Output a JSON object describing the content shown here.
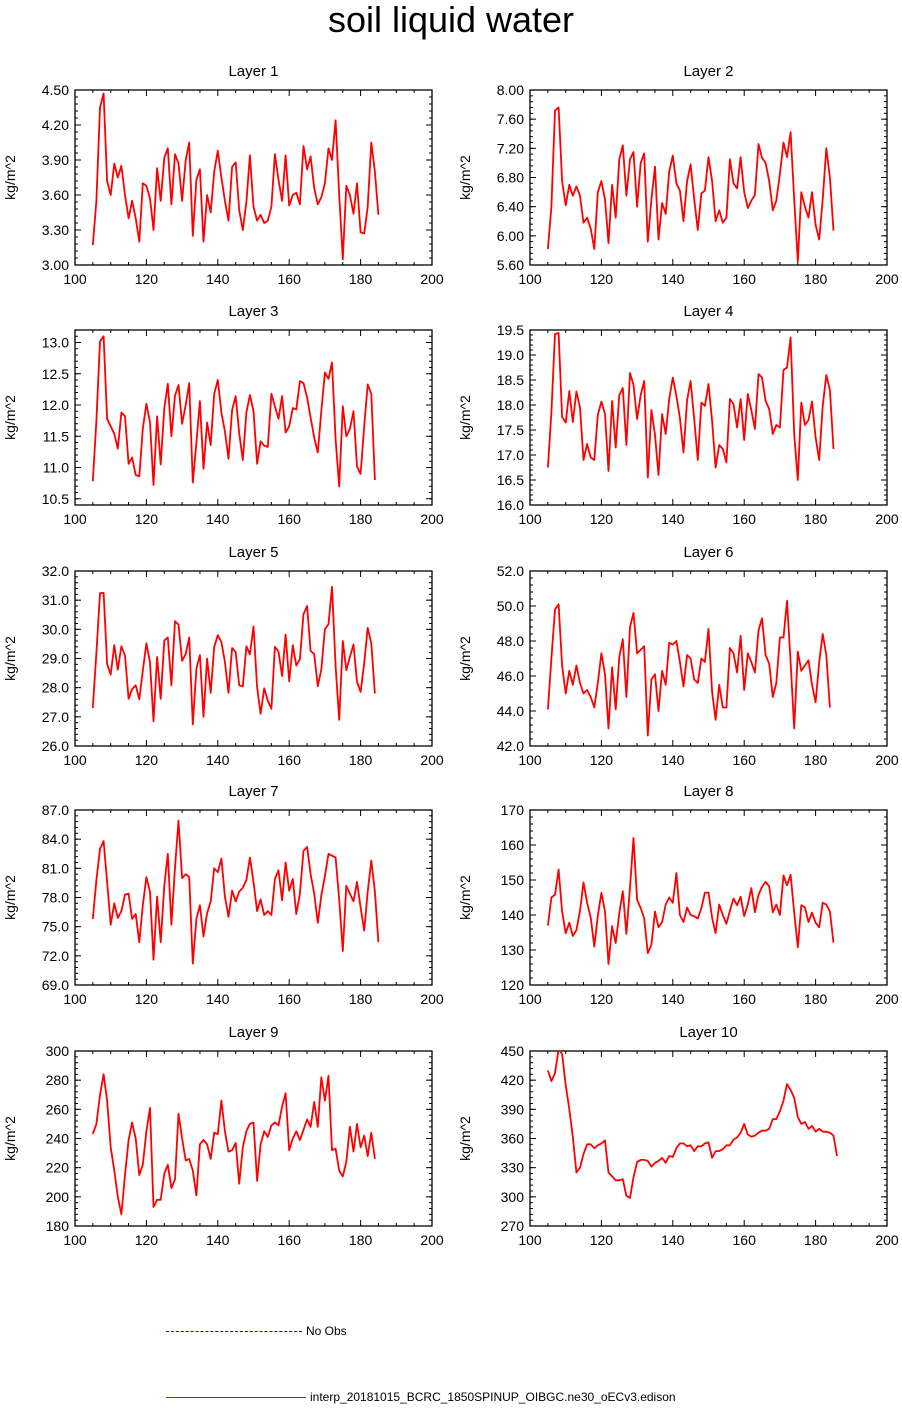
{
  "title": "soil liquid water",
  "legend": {
    "no_obs_label": "No Obs",
    "model_label": "interp_20181015_BCRC_1850SPINUP_OIBGC.ne30_oECv3.edison",
    "no_obs_color": "#0000ff",
    "model_color": "#ff0000"
  },
  "chart_data": [
    {
      "type": "line",
      "title": "Layer 1",
      "ylabel": "kg/m^2",
      "xlim": [
        100,
        200
      ],
      "ylim": [
        3.0,
        4.5
      ],
      "xticks": [
        "100",
        "120",
        "140",
        "160",
        "180",
        "200"
      ],
      "yticks": [
        "3.00",
        "3.30",
        "3.60",
        "3.90",
        "4.20",
        "4.50"
      ],
      "x_start": 105,
      "x_step": 1,
      "values": [
        3.17,
        3.55,
        4.35,
        4.47,
        3.72,
        3.6,
        3.87,
        3.75,
        3.85,
        3.6,
        3.4,
        3.55,
        3.4,
        3.2,
        3.7,
        3.68,
        3.57,
        3.3,
        3.83,
        3.55,
        3.92,
        4.0,
        3.52,
        3.95,
        3.87,
        3.55,
        3.9,
        4.05,
        3.25,
        3.73,
        3.82,
        3.2,
        3.6,
        3.45,
        3.8,
        3.98,
        3.75,
        3.55,
        3.38,
        3.84,
        3.88,
        3.47,
        3.3,
        3.54,
        3.94,
        3.5,
        3.38,
        3.43,
        3.36,
        3.38,
        3.5,
        3.95,
        3.73,
        3.55,
        3.94,
        3.51,
        3.6,
        3.62,
        3.52,
        4.02,
        3.82,
        3.93,
        3.66,
        3.52,
        3.58,
        3.7,
        4.0,
        3.9,
        4.24,
        3.6,
        3.05,
        3.68,
        3.6,
        3.44,
        3.7,
        3.28,
        3.27,
        3.5,
        4.05,
        3.8,
        3.43
      ]
    },
    {
      "type": "line",
      "title": "Layer 2",
      "ylabel": "kg/m^2",
      "xlim": [
        100,
        200
      ],
      "ylim": [
        5.6,
        8.0
      ],
      "xticks": [
        "100",
        "120",
        "140",
        "160",
        "180",
        "200"
      ],
      "yticks": [
        "5.60",
        "6.00",
        "6.40",
        "6.80",
        "7.20",
        "7.60",
        "8.00"
      ],
      "x_start": 105,
      "x_step": 1,
      "values": [
        5.82,
        6.4,
        7.72,
        7.76,
        6.75,
        6.42,
        6.7,
        6.55,
        6.68,
        6.55,
        6.18,
        6.25,
        6.1,
        5.82,
        6.6,
        6.75,
        6.5,
        5.9,
        6.7,
        6.25,
        7.05,
        7.24,
        6.55,
        7.05,
        7.15,
        6.4,
        7.0,
        7.13,
        5.92,
        6.5,
        6.95,
        5.95,
        6.45,
        6.3,
        6.88,
        7.1,
        6.72,
        6.62,
        6.2,
        6.75,
        6.98,
        6.5,
        6.08,
        6.58,
        6.62,
        7.08,
        6.75,
        6.2,
        6.35,
        6.18,
        6.25,
        7.05,
        6.72,
        6.65,
        7.08,
        6.6,
        6.38,
        6.48,
        6.56,
        7.26,
        7.07,
        7.0,
        6.75,
        6.35,
        6.48,
        6.85,
        7.28,
        7.08,
        7.42,
        6.5,
        5.65,
        6.6,
        6.4,
        6.25,
        6.6,
        6.15,
        5.95,
        6.5,
        7.2,
        6.8,
        6.07
      ]
    },
    {
      "type": "line",
      "title": "Layer 3",
      "ylabel": "kg/m^2",
      "xlim": [
        100,
        200
      ],
      "ylim": [
        10.4,
        13.2
      ],
      "xticks": [
        "100",
        "120",
        "140",
        "160",
        "180",
        "200"
      ],
      "yticks": [
        "10.5",
        "11.0",
        "11.5",
        "12.0",
        "12.5",
        "13.0"
      ],
      "x_start": 105,
      "x_step": 1,
      "values": [
        10.78,
        11.75,
        13.02,
        13.1,
        11.78,
        11.66,
        11.54,
        11.3,
        11.88,
        11.82,
        11.06,
        11.16,
        10.88,
        10.86,
        11.62,
        12.02,
        11.72,
        10.72,
        11.82,
        11.05,
        11.95,
        12.34,
        11.5,
        12.15,
        12.32,
        11.7,
        12.0,
        12.35,
        10.76,
        11.4,
        12.06,
        10.98,
        11.72,
        11.36,
        12.18,
        12.4,
        11.88,
        11.58,
        11.14,
        11.92,
        12.14,
        11.55,
        11.12,
        11.88,
        12.16,
        11.9,
        11.06,
        11.42,
        11.35,
        11.33,
        12.18,
        11.98,
        11.78,
        12.14,
        11.56,
        11.66,
        11.95,
        11.93,
        12.38,
        12.35,
        12.12,
        11.8,
        11.48,
        11.24,
        11.9,
        12.52,
        12.42,
        12.68,
        11.45,
        10.7,
        11.98,
        11.5,
        11.62,
        11.9,
        11.02,
        10.9,
        11.66,
        12.33,
        12.18,
        10.8
      ]
    },
    {
      "type": "line",
      "title": "Layer 4",
      "ylabel": "kg/m^2",
      "xlim": [
        100,
        200
      ],
      "ylim": [
        16.0,
        19.5
      ],
      "xticks": [
        "100",
        "120",
        "140",
        "160",
        "180",
        "200"
      ],
      "yticks": [
        "16.0",
        "16.5",
        "17.0",
        "17.5",
        "18.0",
        "18.5",
        "19.0",
        "19.5"
      ],
      "x_start": 105,
      "x_step": 1,
      "values": [
        16.75,
        17.85,
        19.42,
        19.44,
        17.76,
        17.65,
        18.28,
        17.66,
        18.27,
        17.95,
        16.9,
        17.22,
        16.95,
        16.9,
        17.8,
        18.07,
        17.82,
        16.68,
        18.08,
        17.15,
        18.2,
        18.34,
        17.2,
        18.64,
        18.4,
        17.72,
        18.2,
        18.48,
        16.55,
        17.9,
        17.4,
        16.6,
        17.82,
        17.42,
        18.12,
        18.55,
        18.18,
        17.74,
        17.05,
        18.1,
        18.48,
        17.72,
        16.9,
        18.05,
        17.98,
        18.42,
        17.68,
        16.75,
        17.2,
        17.12,
        16.85,
        18.12,
        18.02,
        17.55,
        18.12,
        17.3,
        18.22,
        17.9,
        17.52,
        18.62,
        18.55,
        18.08,
        17.92,
        17.42,
        17.6,
        17.55,
        18.7,
        18.75,
        19.35,
        17.42,
        16.5,
        18.05,
        17.6,
        17.7,
        18.07,
        17.35,
        16.9,
        17.98,
        18.6,
        18.3,
        17.12
      ]
    },
    {
      "type": "line",
      "title": "Layer 5",
      "ylabel": "kg/m^2",
      "xlim": [
        100,
        200
      ],
      "ylim": [
        26.0,
        32.0
      ],
      "xticks": [
        "100",
        "120",
        "140",
        "160",
        "180",
        "200"
      ],
      "yticks": [
        "26.0",
        "27.0",
        "28.0",
        "29.0",
        "30.0",
        "31.0",
        "32.0"
      ],
      "x_start": 105,
      "x_step": 1,
      "values": [
        27.3,
        29.2,
        31.24,
        31.25,
        28.82,
        28.45,
        29.46,
        28.62,
        29.42,
        29.1,
        27.62,
        27.95,
        28.08,
        27.6,
        28.58,
        29.52,
        28.86,
        26.85,
        29.05,
        27.62,
        29.62,
        29.72,
        28.08,
        30.28,
        30.16,
        28.92,
        29.15,
        29.72,
        26.74,
        28.65,
        29.12,
        27.0,
        29.0,
        27.82,
        29.4,
        29.8,
        29.56,
        28.88,
        27.82,
        29.36,
        29.22,
        28.08,
        28.04,
        29.42,
        29.14,
        30.1,
        28.02,
        27.1,
        27.98,
        27.55,
        27.28,
        29.4,
        29.24,
        28.4,
        29.82,
        28.22,
        29.46,
        28.76,
        28.98,
        30.52,
        30.8,
        29.26,
        29.15,
        28.05,
        28.62,
        30.0,
        30.18,
        31.46,
        28.74,
        26.9,
        29.6,
        28.6,
        29.06,
        29.48,
        28.2,
        27.85,
        28.84,
        30.05,
        29.52,
        27.8
      ]
    },
    {
      "type": "line",
      "title": "Layer 6",
      "ylabel": "kg/m^2",
      "xlim": [
        100,
        200
      ],
      "ylim": [
        42.0,
        52.0
      ],
      "xticks": [
        "100",
        "120",
        "140",
        "160",
        "180",
        "200"
      ],
      "yticks": [
        "42.0",
        "44.0",
        "46.0",
        "48.0",
        "50.0",
        "52.0"
      ],
      "x_start": 105,
      "x_step": 1,
      "values": [
        44.1,
        47.0,
        49.8,
        50.1,
        46.6,
        45.0,
        46.3,
        45.5,
        46.6,
        45.6,
        45.0,
        45.2,
        44.8,
        44.2,
        45.6,
        47.3,
        46.1,
        43.0,
        46.5,
        44.1,
        47.1,
        48.1,
        44.8,
        48.8,
        49.6,
        47.3,
        47.5,
        47.7,
        42.6,
        45.8,
        46.1,
        44.0,
        46.3,
        45.5,
        47.9,
        47.8,
        48.0,
        46.8,
        45.4,
        47.2,
        47.0,
        45.8,
        45.6,
        47.0,
        46.8,
        48.7,
        45.1,
        43.5,
        45.5,
        44.2,
        44.2,
        47.6,
        47.3,
        46.2,
        48.3,
        45.2,
        47.3,
        46.8,
        46.2,
        48.6,
        49.3,
        47.2,
        46.7,
        44.8,
        45.6,
        48.2,
        48.2,
        50.3,
        46.8,
        43.0,
        47.4,
        46.3,
        46.6,
        46.9,
        45.5,
        44.5,
        46.8,
        48.4,
        47.2,
        44.2
      ]
    },
    {
      "type": "line",
      "title": "Layer 7",
      "ylabel": "kg/m^2",
      "xlim": [
        100,
        200
      ],
      "ylim": [
        69.0,
        87.0
      ],
      "xticks": [
        "100",
        "120",
        "140",
        "160",
        "180",
        "200"
      ],
      "yticks": [
        "69.0",
        "72.0",
        "75.0",
        "78.0",
        "81.0",
        "84.0",
        "87.0"
      ],
      "x_start": 105,
      "x_step": 1,
      "values": [
        75.8,
        79.8,
        83.0,
        83.8,
        79.6,
        75.2,
        77.4,
        75.9,
        76.6,
        78.3,
        78.4,
        75.8,
        76.3,
        73.4,
        77.2,
        80.1,
        78.6,
        71.6,
        78.1,
        73.4,
        79.2,
        82.5,
        75.2,
        81.1,
        85.9,
        80.0,
        80.4,
        80.1,
        71.2,
        75.8,
        77.2,
        74.0,
        76.4,
        77.6,
        81.0,
        80.6,
        82.0,
        78.1,
        76.0,
        78.7,
        77.6,
        78.6,
        79.0,
        79.8,
        82.1,
        79.6,
        76.6,
        77.8,
        76.2,
        76.6,
        76.2,
        79.9,
        80.8,
        77.7,
        81.6,
        78.7,
        79.9,
        76.3,
        78.4,
        82.8,
        83.2,
        80.4,
        78.4,
        75.4,
        78.2,
        80.2,
        82.5,
        82.3,
        82.1,
        77.8,
        72.5,
        79.2,
        78.4,
        77.6,
        79.6,
        77.0,
        74.6,
        78.6,
        81.8,
        78.6,
        73.4
      ]
    },
    {
      "type": "line",
      "title": "Layer 8",
      "ylabel": "kg/m^2",
      "xlim": [
        100,
        200
      ],
      "ylim": [
        120,
        170
      ],
      "xticks": [
        "100",
        "120",
        "140",
        "160",
        "180",
        "200"
      ],
      "yticks": [
        "120",
        "130",
        "140",
        "150",
        "160",
        "170"
      ],
      "x_start": 105,
      "x_step": 1,
      "values": [
        137.0,
        145.0,
        145.8,
        153.0,
        141.0,
        134.8,
        137.8,
        134.0,
        135.7,
        141.2,
        149.3,
        143.5,
        139.3,
        131.0,
        139.8,
        146.3,
        141.0,
        126.0,
        136.8,
        132.0,
        140.5,
        146.8,
        134.6,
        148.0,
        162.0,
        144.3,
        142.0,
        139.0,
        129.1,
        131.5,
        141.0,
        136.5,
        138.0,
        143.0,
        145.0,
        143.5,
        152.0,
        140.0,
        138.0,
        142.1,
        140.0,
        139.7,
        139.0,
        142.0,
        146.4,
        146.4,
        139.2,
        134.8,
        143.0,
        140.0,
        137.5,
        141.2,
        144.7,
        142.8,
        145.2,
        139.7,
        143.0,
        147.7,
        140.8,
        145.8,
        148.0,
        149.5,
        148.2,
        140.8,
        143.0,
        140.0,
        151.3,
        148.5,
        151.5,
        140.7,
        130.8,
        142.8,
        142.2,
        138.0,
        140.7,
        137.8,
        136.5,
        143.5,
        143.0,
        141.0,
        132.1
      ]
    },
    {
      "type": "line",
      "title": "Layer 9",
      "ylabel": "kg/m^2",
      "xlim": [
        100,
        200
      ],
      "ylim": [
        180,
        300
      ],
      "xticks": [
        "100",
        "120",
        "140",
        "160",
        "180",
        "200"
      ],
      "yticks": [
        "180",
        "200",
        "220",
        "240",
        "260",
        "280",
        "300"
      ],
      "x_start": 105,
      "x_step": 1,
      "values": [
        243,
        250,
        270,
        284,
        266,
        234,
        218,
        200,
        188,
        215,
        239,
        251,
        240,
        215,
        222,
        245,
        261,
        193,
        198,
        198,
        216,
        222,
        206,
        212,
        257,
        240,
        225,
        226,
        218,
        201,
        236,
        239,
        236,
        226,
        244,
        243,
        266,
        245,
        231,
        232,
        237,
        209,
        234,
        245,
        250,
        251,
        211,
        236,
        245,
        241,
        249,
        251,
        249,
        262,
        271,
        232,
        240,
        245,
        239,
        246,
        253,
        248,
        265,
        248,
        282,
        266,
        283,
        232,
        233,
        218,
        214,
        224,
        248,
        231,
        250,
        234,
        242,
        228,
        244,
        226
      ]
    },
    {
      "type": "line",
      "title": "Layer 10",
      "ylabel": "kg/m^2",
      "xlim": [
        100,
        200
      ],
      "ylim": [
        270,
        450
      ],
      "xticks": [
        "100",
        "120",
        "140",
        "160",
        "180",
        "200"
      ],
      "yticks": [
        "270",
        "300",
        "330",
        "360",
        "390",
        "420",
        "450"
      ],
      "x_start": 105,
      "x_step": 1,
      "values": [
        430,
        419,
        427,
        452,
        447,
        415,
        390,
        362,
        325,
        330,
        344,
        354,
        354,
        350,
        353,
        355,
        358,
        325,
        321,
        317,
        317,
        318,
        301,
        299,
        320,
        336,
        338,
        338,
        337,
        331,
        335,
        337,
        340,
        335,
        342,
        341,
        350,
        355,
        355,
        352,
        353,
        347,
        352,
        352,
        355,
        356,
        340,
        347,
        347,
        349,
        353,
        353,
        359,
        361,
        366,
        375,
        364,
        362,
        363,
        366,
        368,
        368,
        370,
        380,
        380,
        388,
        399,
        416,
        410,
        402,
        382,
        375,
        377,
        370,
        373,
        367,
        370,
        367,
        367,
        366,
        363,
        342
      ]
    }
  ]
}
